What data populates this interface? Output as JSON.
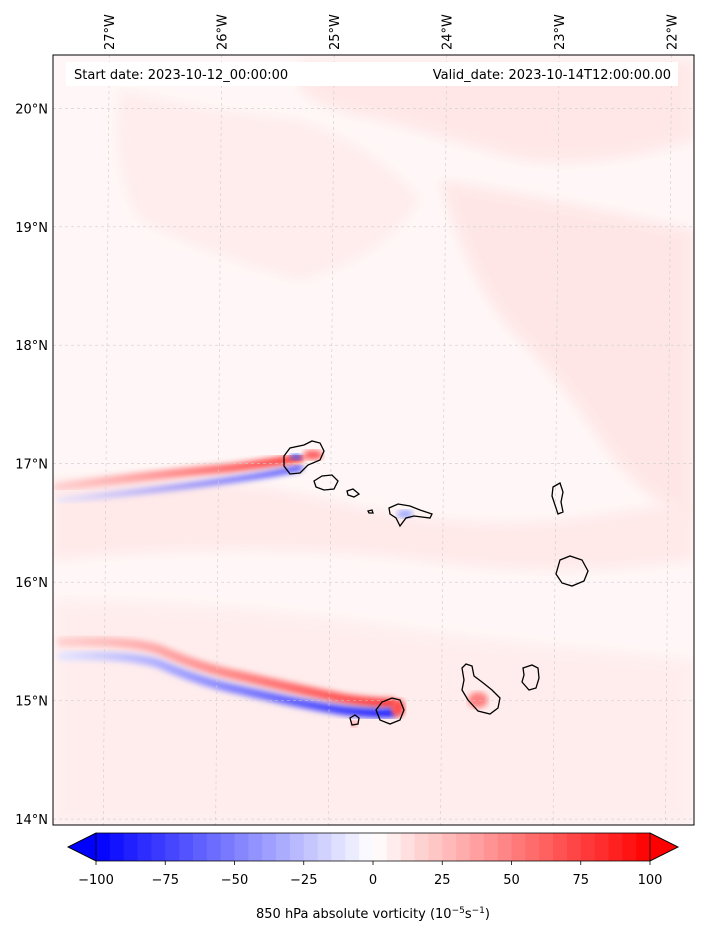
{
  "map": {
    "lon_range": [
      -27.5,
      -21.8
    ],
    "lat_range": [
      13.95,
      20.45
    ],
    "lon_ticks": [
      "27°W",
      "26°W",
      "25°W",
      "24°W",
      "23°W",
      "22°W"
    ],
    "lon_tick_values": [
      -27,
      -26,
      -25,
      -24,
      -23,
      -22
    ],
    "lat_ticks": [
      "14°N",
      "15°N",
      "16°N",
      "17°N",
      "18°N",
      "19°N",
      "20°N"
    ],
    "lat_tick_values": [
      14,
      15,
      16,
      17,
      18,
      19,
      20
    ],
    "gridlines": true,
    "start_label": "Start date: 2023-10-12_00:00:00",
    "valid_label": "Valid_date: 2023-10-14T12:00:00.00"
  },
  "colorbar": {
    "min": -100,
    "max": 100,
    "tick_values": [
      -100,
      -75,
      -50,
      -25,
      0,
      25,
      50,
      75,
      100
    ],
    "tick_labels": [
      "−100",
      "−75",
      "−50",
      "−25",
      "0",
      "25",
      "50",
      "75",
      "100"
    ],
    "label": "850 hPa absolute vorticity (10",
    "label_exp1": "−5",
    "label_mid": "s",
    "label_exp2": "−1",
    "label_end": ")",
    "colors": {
      "low": "#0000ff",
      "mid": "#ffffff",
      "high": "#ff0000"
    }
  },
  "colors": {
    "background_field": "#fff6f6",
    "coastline": "#000000",
    "grid": "#cccccc"
  }
}
